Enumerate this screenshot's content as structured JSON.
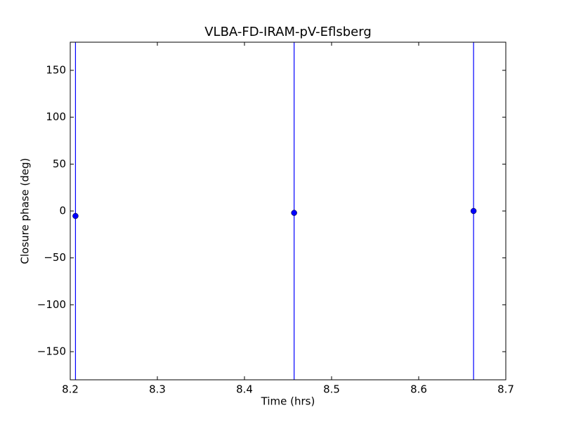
{
  "chart_data": {
    "type": "scatter",
    "title": "VLBA-FD-IRAM-pV-Eflsberg",
    "xlabel": "Time (hrs)",
    "ylabel": "Closure phase (deg)",
    "x": [
      8.206,
      8.457,
      8.663
    ],
    "values": [
      -5.3,
      -2,
      0
    ],
    "errors": [
      200,
      200,
      200
    ],
    "color": "#0000ff",
    "xlim": [
      8.2,
      8.7
    ],
    "ylim": [
      -180,
      180
    ],
    "xticks": [
      8.2,
      8.3,
      8.4,
      8.5,
      8.6,
      8.7
    ],
    "yticks": [
      {
        "value": -150,
        "label": "−150"
      },
      {
        "value": -100,
        "label": "−100"
      },
      {
        "value": -50,
        "label": "−50"
      },
      0,
      50,
      100,
      150
    ]
  }
}
